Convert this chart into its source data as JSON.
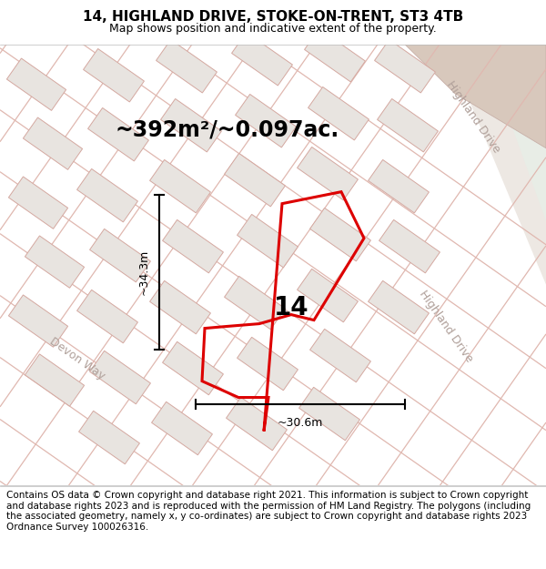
{
  "title": "14, HIGHLAND DRIVE, STOKE-ON-TRENT, ST3 4TB",
  "subtitle": "Map shows position and indicative extent of the property.",
  "area_text": "~392m²/~0.097ac.",
  "label_14": "14",
  "dim_width": "~30.6m",
  "dim_height": "~34.3m",
  "road_label_highland": "Highland Drive",
  "road_label_devon": "Devon Way",
  "road_label_highland2": "Highland Drive",
  "footer": "Contains OS data © Crown copyright and database right 2021. This information is subject to Crown copyright and database rights 2023 and is reproduced with the permission of HM Land Registry. The polygons (including the associated geometry, namely x, y co-ordinates) are subject to Crown copyright and database rights 2023 Ordnance Survey 100026316.",
  "map_bg": "#f5f0eb",
  "building_fill": "#e8e4e0",
  "building_edge": "#d4a8a0",
  "plot_fill": "#f0ece8",
  "property_color": "#dd0000",
  "road_line_color": "#e0b8b0",
  "highland_road_bg": "#eae6e2",
  "green_bg": "#e8ede6",
  "brown_area": "#d8c8bc",
  "title_fontsize": 11,
  "subtitle_fontsize": 9,
  "footer_fontsize": 7.5,
  "area_fontsize": 17,
  "label_fontsize": 20,
  "dim_fontsize": 9,
  "road_fontsize": 9
}
